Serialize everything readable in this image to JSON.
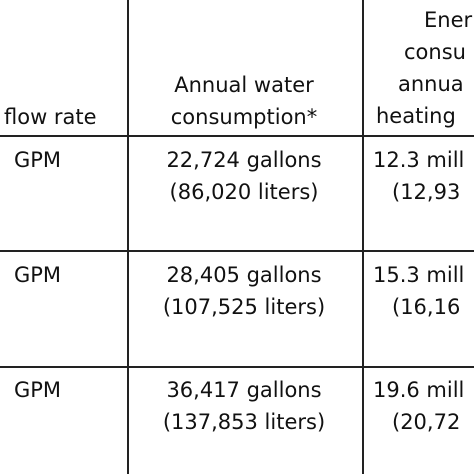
{
  "table": {
    "header": [
      [
        "flow rate"
      ],
      [
        "Annual water",
        "consumption*"
      ],
      [
        "Ener",
        "consu",
        "annua",
        "heating"
      ]
    ],
    "rows": [
      [
        [
          "GPM"
        ],
        [
          "22,724 gallons",
          "(86,020 liters)"
        ],
        [
          "12.3 mill",
          "(12,93"
        ]
      ],
      [
        [
          "GPM"
        ],
        [
          "28,405 gallons",
          "(107,525 liters)"
        ],
        [
          "15.3 mill",
          "(16,16"
        ]
      ],
      [
        [
          "GPM"
        ],
        [
          "36,417 gallons",
          "(137,853 liters)"
        ],
        [
          "19.6 mill",
          "(20,72"
        ]
      ]
    ]
  }
}
